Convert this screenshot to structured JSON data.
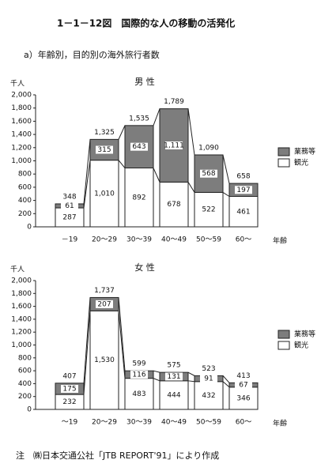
{
  "header": {
    "figure_title": "1－1－12図　国際的な人の移動の活発化",
    "subtitle": "a）年齢別，目的別の海外旅行者数"
  },
  "note": "注　㈱日本交通公社「JTB REPORT'91」により作成",
  "chart_data": [
    {
      "type": "bar",
      "stacked": true,
      "title": "男 性",
      "y_unit": "千人",
      "x_label": "年齢",
      "categories": [
        "－19",
        "20～29",
        "30～39",
        "40～49",
        "50～59",
        "60～"
      ],
      "series": [
        {
          "name": "観光",
          "color": "#ffffff",
          "values": [
            287,
            1010,
            892,
            678,
            522,
            461
          ],
          "value_labels": [
            "287",
            "1,010",
            "892",
            "678",
            "522",
            "461"
          ]
        },
        {
          "name": "業務等",
          "color": "#7d7d7d",
          "values": [
            61,
            315,
            643,
            1111,
            568,
            197
          ],
          "value_labels": [
            "61",
            "315",
            "643",
            "1,111",
            "568",
            "197"
          ]
        }
      ],
      "totals": [
        348,
        1325,
        1535,
        1789,
        1090,
        658
      ],
      "total_labels": [
        "348",
        "1,325",
        "1,535",
        "1,789",
        "1,090",
        "658"
      ],
      "ylim": [
        0,
        2000
      ],
      "yticks": [
        0,
        200,
        400,
        600,
        800,
        {
          "value": 1000,
          "label": "1,000"
        },
        {
          "value": 1200,
          "label": "1,200"
        },
        {
          "value": 1400,
          "label": "1,400"
        },
        {
          "value": 1600,
          "label": "1,600"
        },
        {
          "value": 1800,
          "label": "1,800"
        },
        {
          "value": 2000,
          "label": "2,000"
        }
      ],
      "legend": "right"
    },
    {
      "type": "bar",
      "stacked": true,
      "title": "女 性",
      "y_unit": "千人",
      "x_label": "年齢",
      "categories": [
        "～19",
        "20～29",
        "30～39",
        "40～49",
        "50～59",
        "60～"
      ],
      "series": [
        {
          "name": "観光",
          "color": "#ffffff",
          "values": [
            232,
            1530,
            483,
            444,
            432,
            346
          ],
          "value_labels": [
            "232",
            "1,530",
            "483",
            "444",
            "432",
            "346"
          ]
        },
        {
          "name": "業務等",
          "color": "#7d7d7d",
          "values": [
            175,
            207,
            116,
            131,
            91,
            67
          ],
          "value_labels": [
            "175",
            "207",
            "116",
            "131",
            "91",
            "67"
          ]
        }
      ],
      "totals": [
        407,
        1737,
        599,
        575,
        523,
        413
      ],
      "total_labels": [
        "407",
        "1,737",
        "599",
        "575",
        "523",
        "413"
      ],
      "ylim": [
        0,
        2000
      ],
      "yticks": [
        0,
        200,
        400,
        600,
        800,
        {
          "value": 1000,
          "label": "1,000"
        },
        {
          "value": 1200,
          "label": "1,200"
        },
        {
          "value": 1400,
          "label": "1,400"
        },
        {
          "value": 1600,
          "label": "1,600"
        },
        {
          "value": 1800,
          "label": "1,800"
        },
        {
          "value": 2000,
          "label": "2,000"
        }
      ],
      "legend": "right"
    }
  ]
}
